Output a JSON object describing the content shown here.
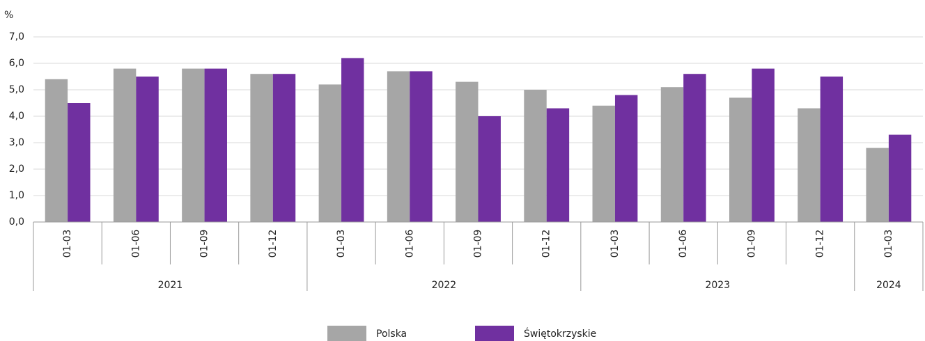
{
  "chart_data": {
    "type": "bar",
    "y_unit": "%",
    "groups": [
      {
        "name": "2021",
        "categories": [
          "01-03",
          "01-06",
          "01-09",
          "01-12"
        ]
      },
      {
        "name": "2022",
        "categories": [
          "01-03",
          "01-06",
          "01-09",
          "01-12"
        ]
      },
      {
        "name": "2023",
        "categories": [
          "01-03",
          "01-06",
          "01-09",
          "01-12"
        ]
      },
      {
        "name": "2024",
        "categories": [
          "01-03"
        ]
      }
    ],
    "series": [
      {
        "name": "Polska",
        "color": "#a6a6a6",
        "values": [
          5.4,
          5.8,
          5.8,
          5.6,
          5.2,
          5.7,
          5.3,
          5.0,
          4.4,
          5.1,
          4.7,
          4.3,
          2.8
        ]
      },
      {
        "name": "Świętokrzyskie",
        "color": "#7030a0",
        "values": [
          4.5,
          5.5,
          5.8,
          5.6,
          6.2,
          5.7,
          4.0,
          4.3,
          4.8,
          5.6,
          5.8,
          5.5,
          3.3
        ]
      }
    ],
    "ylim": [
      0,
      7
    ],
    "yticks": [
      {
        "value": 0,
        "label": "0,0"
      },
      {
        "value": 1,
        "label": "1,0"
      },
      {
        "value": 2,
        "label": "2,0"
      },
      {
        "value": 3,
        "label": "3,0"
      },
      {
        "value": 4,
        "label": "4,0"
      },
      {
        "value": 5,
        "label": "5,0"
      },
      {
        "value": 6,
        "label": "6,0"
      },
      {
        "value": 7,
        "label": "7,0"
      }
    ],
    "grid": true,
    "legend": "bottom"
  }
}
